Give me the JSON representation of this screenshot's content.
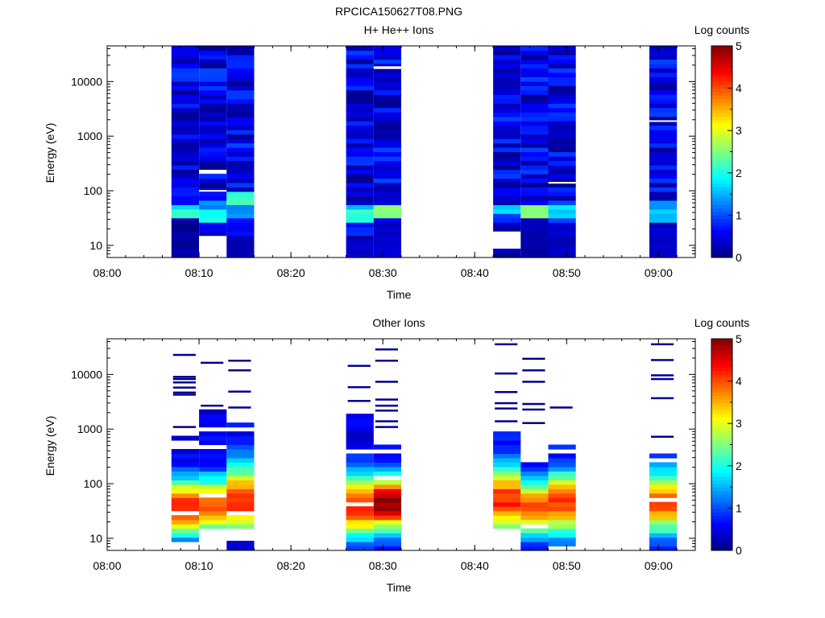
{
  "figure": {
    "title": "RPCICA150627T08.PNG"
  },
  "chart_data": [
    {
      "type": "heatmap",
      "title": "H+ He++ Ions",
      "xlabel": "Time",
      "ylabel": "Energy (eV)",
      "x_ticks": [
        "08:00",
        "08:10",
        "08:20",
        "08:30",
        "08:40",
        "08:50",
        "09:00"
      ],
      "y_ticks": [
        "10",
        "100",
        "1000",
        "10000"
      ],
      "y_scale": "log",
      "y_range": [
        6,
        45000
      ],
      "colorbar": {
        "label": "Log counts",
        "ticks": [
          "0",
          "1",
          "2",
          "3",
          "4",
          "5"
        ],
        "range": [
          0,
          5
        ],
        "colormap": "jet"
      },
      "columns": [
        {
          "t0": "08:07",
          "t1": "08:10",
          "seed": 11,
          "base": 0.55,
          "var": 0.6,
          "low": [
            [
              30,
              50,
              2.0
            ],
            [
              50,
              60,
              1.6
            ],
            [
              60,
              80,
              0.5
            ],
            [
              6,
              30,
              0.2
            ]
          ],
          "gaps": []
        },
        {
          "t0": "08:10",
          "t1": "08:13",
          "seed": 22,
          "base": 0.55,
          "var": 0.6,
          "low": [
            [
              25,
              50,
              1.9
            ],
            [
              50,
              65,
              1.3
            ],
            [
              65,
              95,
              0.6
            ],
            [
              15,
              25,
              0.5
            ]
          ],
          "gaps": [
            [
              6,
              15
            ],
            [
              220,
              235
            ],
            [
              97,
              103
            ]
          ]
        },
        {
          "t0": "08:13",
          "t1": "08:16",
          "seed": 33,
          "base": 0.55,
          "var": 0.6,
          "low": [
            [
              60,
              90,
              2.2
            ],
            [
              35,
              60,
              1.4
            ],
            [
              15,
              35,
              0.6
            ],
            [
              6,
              15,
              0.3
            ]
          ],
          "gaps": []
        },
        {
          "t0": "08:26",
          "t1": "08:29",
          "seed": 44,
          "base": 0.55,
          "var": 0.6,
          "low": [
            [
              28,
              45,
              2.1
            ],
            [
              45,
              60,
              1.6
            ],
            [
              15,
              28,
              0.7
            ],
            [
              6,
              15,
              0.3
            ]
          ],
          "gaps": []
        },
        {
          "t0": "08:29",
          "t1": "08:32",
          "seed": 55,
          "base": 0.55,
          "var": 0.6,
          "low": [
            [
              30,
              60,
              2.6
            ],
            [
              60,
              90,
              0.5
            ],
            [
              6,
              30,
              0.4
            ]
          ],
          "gaps": [
            [
              17000,
              19000
            ]
          ]
        },
        {
          "t0": "08:42",
          "t1": "08:45",
          "seed": 66,
          "base": 0.55,
          "var": 0.6,
          "low": [
            [
              40,
              55,
              1.6
            ],
            [
              28,
              40,
              0.8
            ],
            [
              6,
              28,
              0.2
            ]
          ],
          "gaps": [
            [
              9,
              20
            ]
          ]
        },
        {
          "t0": "08:45",
          "t1": "08:48",
          "seed": 77,
          "base": 0.55,
          "var": 0.6,
          "low": [
            [
              35,
              60,
              2.5
            ],
            [
              28,
              35,
              0.4
            ],
            [
              6,
              28,
              0.2
            ]
          ],
          "gaps": []
        },
        {
          "t0": "08:48",
          "t1": "08:51",
          "seed": 88,
          "base": 0.55,
          "var": 0.6,
          "low": [
            [
              35,
              60,
              1.7
            ],
            [
              25,
              35,
              0.9
            ],
            [
              6,
              25,
              0.4
            ]
          ],
          "gaps": [
            [
              135,
              145
            ]
          ]
        },
        {
          "t0": "08:59",
          "t1": "09:02",
          "seed": 99,
          "base": 0.55,
          "var": 0.6,
          "low": [
            [
              28,
              45,
              1.6
            ],
            [
              45,
              65,
              1.2
            ],
            [
              6,
              28,
              0.3
            ]
          ],
          "gaps": [
            [
              1850,
              1950
            ]
          ]
        }
      ]
    },
    {
      "type": "heatmap",
      "title": "Other Ions",
      "xlabel": "Time",
      "ylabel": "Energy (eV)",
      "x_ticks": [
        "08:00",
        "08:10",
        "08:20",
        "08:30",
        "08:40",
        "08:50",
        "09:00"
      ],
      "y_ticks": [
        "10",
        "100",
        "1000",
        "10000"
      ],
      "y_scale": "log",
      "y_range": [
        6,
        45000
      ],
      "colorbar": {
        "label": "Log counts",
        "ticks": [
          "0",
          "1",
          "2",
          "3",
          "4",
          "5"
        ],
        "range": [
          0,
          5
        ],
        "colormap": "jet"
      },
      "columns": [
        {
          "t0": "08:07",
          "t1": "08:10",
          "peak": 3.9,
          "pe": 38,
          "width": 0.35,
          "top": 750,
          "bottom": 9,
          "seed": 101,
          "lines": [
            1100,
            4300,
            4700,
            5800,
            7200,
            8300,
            9100,
            23000
          ]
        },
        {
          "t0": "08:10",
          "t1": "08:13",
          "peak": 3.6,
          "pe": 40,
          "width": 0.35,
          "top": 2100,
          "bottom": 15,
          "seed": 102,
          "lines": [
            2700,
            16500
          ]
        },
        {
          "t0": "08:13",
          "t1": "08:16",
          "peak": 3.7,
          "pe": 50,
          "width": 0.45,
          "top": 1400,
          "bottom": 15,
          "seed": 103,
          "lines": [
            2500,
            4900,
            12000,
            18000
          ],
          "extra": [
            [
              6,
              9,
              0.4
            ]
          ]
        },
        {
          "t0": "08:26",
          "t1": "08:29",
          "peak": 3.8,
          "pe": 40,
          "width": 0.4,
          "top": 2000,
          "bottom": 6,
          "seed": 104,
          "lines": [
            3300,
            5900,
            14500
          ]
        },
        {
          "t0": "08:29",
          "t1": "08:32",
          "peak": 4.5,
          "pe": 45,
          "width": 0.35,
          "top": 500,
          "bottom": 6,
          "seed": 105,
          "lines": [
            1100,
            1400,
            2200,
            2700,
            3500,
            7400,
            18000,
            29000
          ]
        },
        {
          "t0": "08:42",
          "t1": "08:45",
          "peak": 3.7,
          "pe": 50,
          "width": 0.45,
          "top": 1000,
          "bottom": 15,
          "seed": 106,
          "lines": [
            1400,
            2400,
            3000,
            4800,
            10500,
            36000
          ]
        },
        {
          "t0": "08:45",
          "t1": "08:48",
          "peak": 3.6,
          "pe": 38,
          "width": 0.35,
          "top": 260,
          "bottom": 6,
          "seed": 107,
          "lines": [
            1300,
            2300,
            2900,
            7400,
            12000,
            19500
          ]
        },
        {
          "t0": "08:48",
          "t1": "08:51",
          "peak": 3.6,
          "pe": 45,
          "width": 0.4,
          "top": 500,
          "bottom": 6,
          "seed": 108,
          "lines": [
            2500
          ]
        },
        {
          "t0": "08:59",
          "t1": "09:02",
          "peak": 3.4,
          "pe": 45,
          "width": 0.4,
          "top": 450,
          "bottom": 6,
          "seed": 109,
          "lines": [
            730,
            3700,
            8300,
            9700,
            18500,
            36000
          ]
        }
      ]
    }
  ]
}
